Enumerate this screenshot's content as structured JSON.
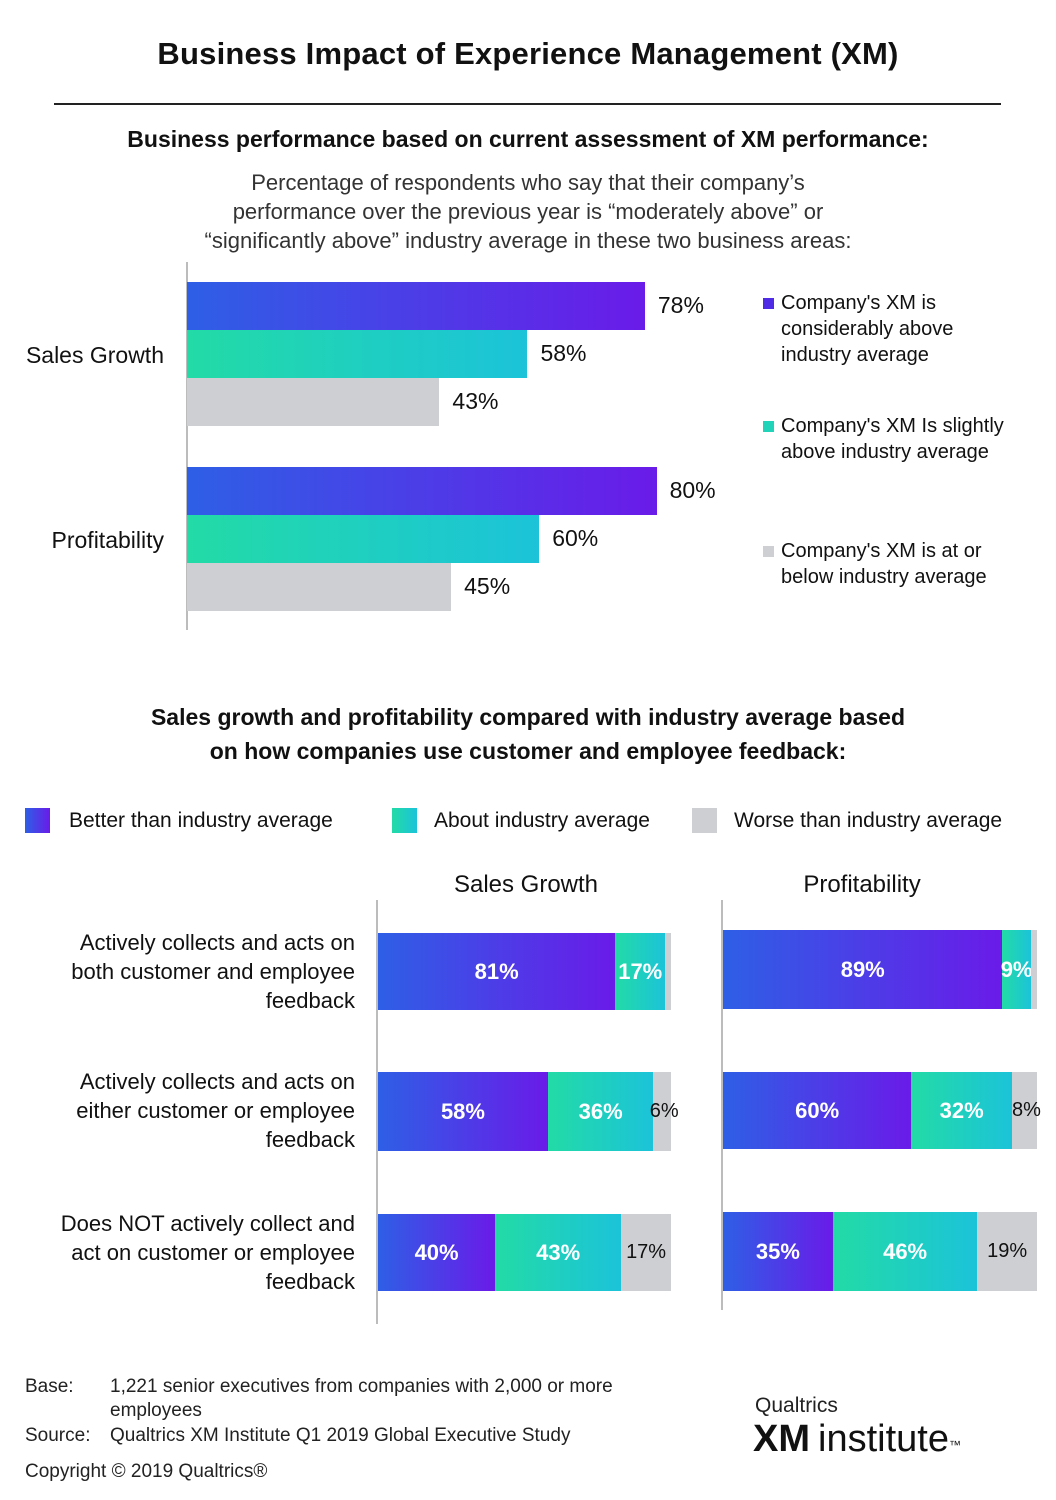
{
  "title": "Business Impact of Experience Management (XM)",
  "section1": {
    "heading": "Business performance based on current assessment of XM performance:",
    "description_lines": [
      "Percentage of respondents who say that their company’s",
      "performance over the previous year is “moderately above” or",
      "“significantly above” industry average in these two business areas:"
    ],
    "legend": [
      "Company's XM is considerably above industry average",
      "Company's XM Is slightly above industry average",
      "Company's XM is at or below industry average"
    ],
    "legend_lines": [
      [
        "Company's XM is",
        "considerably above",
        "industry average"
      ],
      [
        "Company's XM Is slightly",
        "above industry average"
      ],
      [
        "Company's XM is at or",
        "below industry average"
      ]
    ]
  },
  "section2": {
    "heading_lines": [
      "Sales growth and profitability compared with industry average based",
      "on how companies use customer and employee feedback:"
    ],
    "legend": [
      "Better than industry average",
      "About industry average",
      "Worse than industry average"
    ],
    "row_label_lines": [
      [
        "Actively collects and acts on",
        "both customer and employee",
        "feedback"
      ],
      [
        "Actively collects and acts on",
        "either customer or employee",
        "feedback"
      ],
      [
        "Does NOT actively collect and",
        "act on customer or employee",
        "feedback"
      ]
    ]
  },
  "colors": {
    "purple_start": "#2E5FE6",
    "purple_end": "#6A1BE8",
    "teal_start": "#22DBA6",
    "teal_end": "#1CC3D9",
    "gray": "#CDCFD2"
  },
  "chart_data": [
    {
      "type": "bar",
      "orientation": "horizontal",
      "categories": [
        "Sales Growth",
        "Profitability"
      ],
      "series": [
        {
          "name": "Company's XM is considerably above industry average",
          "values": [
            78,
            80
          ],
          "labels": [
            "78%",
            "80%"
          ]
        },
        {
          "name": "Company's XM Is slightly above industry average",
          "values": [
            58,
            60
          ],
          "labels": [
            "58%",
            "60%"
          ]
        },
        {
          "name": "Company's XM is at or below industry average",
          "values": [
            43,
            45
          ],
          "labels": [
            "43%",
            "45%"
          ]
        }
      ],
      "xlim": [
        0,
        100
      ],
      "legend_position": "right"
    },
    {
      "type": "bar",
      "orientation": "horizontal",
      "stacked": true,
      "title": "Sales Growth",
      "categories": [
        "Actively collects and acts on both customer and employee feedback",
        "Actively collects and acts on either customer or employee feedback",
        "Does NOT actively collect and act on customer or employee feedback"
      ],
      "series": [
        {
          "name": "Better than industry average",
          "values": [
            81,
            58,
            40
          ],
          "labels": [
            "81%",
            "58%",
            "40%"
          ]
        },
        {
          "name": "About industry average",
          "values": [
            17,
            36,
            43
          ],
          "labels": [
            "17%",
            "36%",
            "43%"
          ]
        },
        {
          "name": "Worse than industry average",
          "values": [
            2,
            6,
            17
          ],
          "labels": [
            "",
            "6%",
            "17%"
          ]
        }
      ],
      "xlim": [
        0,
        100
      ]
    },
    {
      "type": "bar",
      "orientation": "horizontal",
      "stacked": true,
      "title": "Profitability",
      "categories": [
        "Actively collects and acts on both customer and employee feedback",
        "Actively collects and acts on either customer or employee feedback",
        "Does NOT actively collect and act on customer or employee feedback"
      ],
      "series": [
        {
          "name": "Better than industry average",
          "values": [
            89,
            60,
            35
          ],
          "labels": [
            "89%",
            "60%",
            "35%"
          ]
        },
        {
          "name": "About industry average",
          "values": [
            9,
            32,
            46
          ],
          "labels": [
            "9%",
            "32%",
            "46%"
          ]
        },
        {
          "name": "Worse than industry average",
          "values": [
            2,
            8,
            19
          ],
          "labels": [
            "",
            "8%",
            "19%"
          ]
        }
      ],
      "xlim": [
        0,
        100
      ]
    }
  ],
  "footer": {
    "base_label": "Base:",
    "base_line1": "1,221 senior executives from companies with 2,000 or more",
    "base_line2": "employees",
    "source_label": "Source:",
    "source_text": "Qualtrics XM Institute Q1 2019 Global Executive Study",
    "copyright": "Copyright © 2019 Qualtrics®"
  },
  "logo": {
    "top": "Qualtrics",
    "xm": "XM",
    "institute": "institute",
    "tm": "™"
  }
}
